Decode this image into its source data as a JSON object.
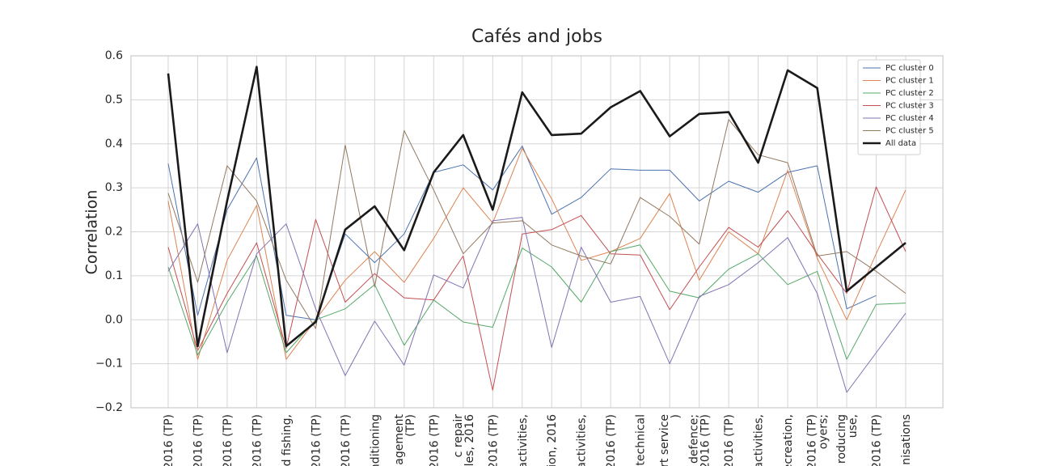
{
  "chart_data": {
    "type": "line",
    "title": "Cafés and jobs",
    "y_label": "Correlation",
    "categories": [
      "2016 (TP)",
      "2016 (TP)",
      "2016 (TP)",
      "2016 (TP)",
      "d fishing,",
      "2016 (TP)",
      "2016 (TP)",
      "nditioning",
      "nagement\n(TP)",
      "2016 (TP)",
      "c repair\nles, 2016",
      "2016 (TP)",
      "activities,",
      "ion, 2016",
      "activities,",
      "2016 (TP)",
      "technical",
      "rt service\n)",
      "defence;\n2016 (TP)",
      "2016 (TP)",
      "activities,",
      "ecreation,",
      "2016 (TP)\noyers;",
      "roducing\nuse,",
      "2016 (TP)",
      "anisations"
    ],
    "series": [
      {
        "name": "PC cluster 0",
        "color": "#4c72b0",
        "width": 1,
        "values": [
          0.355,
          0.01,
          0.25,
          0.368,
          0.01,
          0.0,
          0.195,
          0.13,
          0.195,
          0.335,
          0.352,
          0.295,
          0.395,
          0.24,
          0.278,
          0.343,
          0.34,
          0.34,
          0.27,
          0.315,
          0.29,
          0.335,
          0.35,
          0.025,
          0.055,
          null
        ]
      },
      {
        "name": "PC cluster 1",
        "color": "#dd8452",
        "width": 1,
        "values": [
          0.27,
          -0.09,
          0.135,
          0.26,
          -0.09,
          0.0,
          0.09,
          0.155,
          0.085,
          0.185,
          0.3,
          0.22,
          0.39,
          0.275,
          0.135,
          0.155,
          0.185,
          0.287,
          0.09,
          0.2,
          0.15,
          0.34,
          0.14,
          0.0,
          0.15,
          0.295
        ]
      },
      {
        "name": "PC cluster 2",
        "color": "#55a868",
        "width": 1,
        "values": [
          0.12,
          -0.08,
          0.04,
          0.145,
          -0.075,
          0.0,
          0.025,
          0.08,
          -0.058,
          0.045,
          -0.005,
          -0.017,
          0.163,
          0.12,
          0.04,
          0.155,
          0.17,
          0.065,
          0.05,
          0.115,
          0.15,
          0.08,
          0.11,
          -0.09,
          0.035,
          0.038
        ]
      },
      {
        "name": "PC cluster 3",
        "color": "#c44e52",
        "width": 1,
        "values": [
          0.165,
          -0.07,
          0.06,
          0.175,
          -0.065,
          0.228,
          0.04,
          0.105,
          0.05,
          0.045,
          0.145,
          -0.16,
          0.195,
          0.205,
          0.237,
          0.15,
          0.147,
          0.023,
          0.12,
          0.21,
          0.165,
          0.248,
          0.15,
          0.06,
          0.302,
          0.155
        ]
      },
      {
        "name": "PC cluster 4",
        "color": "#8172b3",
        "width": 1,
        "values": [
          0.11,
          0.218,
          -0.075,
          0.15,
          0.218,
          0.025,
          -0.127,
          -0.003,
          -0.103,
          0.102,
          0.072,
          0.225,
          0.233,
          -0.063,
          0.165,
          0.04,
          0.053,
          -0.1,
          0.053,
          0.08,
          0.13,
          0.187,
          0.06,
          -0.165,
          -0.075,
          0.015
        ]
      },
      {
        "name": "PC cluster 5",
        "color": "#937860",
        "width": 1,
        "values": [
          0.288,
          0.085,
          0.35,
          0.27,
          0.09,
          -0.02,
          0.397,
          0.075,
          0.43,
          0.295,
          0.15,
          0.22,
          0.225,
          0.17,
          0.145,
          0.127,
          0.278,
          0.235,
          0.172,
          0.455,
          0.375,
          0.357,
          0.145,
          0.155,
          0.11,
          0.06
        ]
      },
      {
        "name": "All data",
        "color": "#1a1a1a",
        "width": 2.6,
        "values": [
          0.56,
          -0.06,
          0.27,
          0.575,
          -0.06,
          -0.005,
          0.205,
          0.258,
          0.158,
          0.335,
          0.42,
          0.25,
          0.517,
          0.42,
          0.423,
          0.483,
          0.52,
          0.417,
          0.468,
          0.472,
          0.357,
          0.567,
          0.527,
          0.065,
          0.12,
          0.175
        ]
      }
    ],
    "ylim": [
      -0.2,
      0.6
    ],
    "yticks": [
      {
        "value": -0.2,
        "label": "−0.2"
      },
      {
        "value": -0.1,
        "label": "−0.1"
      },
      {
        "value": 0,
        "label": "0.0"
      },
      0.1,
      0.2,
      0.3,
      0.4,
      0.5,
      0.6
    ],
    "grid": true,
    "legend": "upper right"
  }
}
